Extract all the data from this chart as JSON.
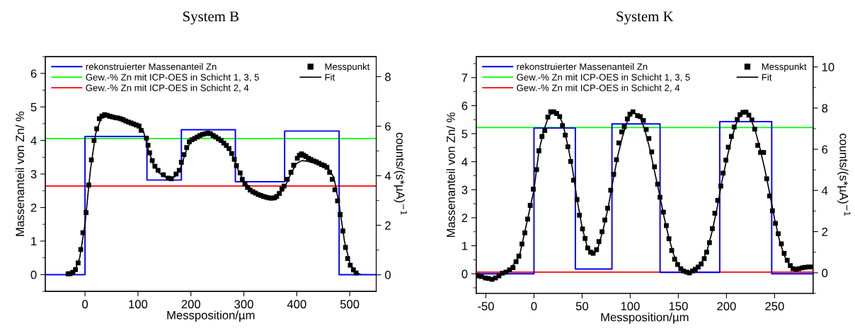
{
  "chart_data": [
    {
      "type": "scatter",
      "title": "System B",
      "xlabel": "Messposition/µm",
      "ylabel": "Massenanteil von Zn/ %",
      "y2label": "counts/(s*µA)$^{−1}$",
      "xlim": [
        -75,
        550
      ],
      "xticks": [
        0,
        100,
        200,
        300,
        400,
        500
      ],
      "ylim": [
        -0.5,
        6.5
      ],
      "yticks": [
        0,
        1,
        2,
        3,
        4,
        5,
        6
      ],
      "y2lim": [
        -0.67,
        8.81
      ],
      "y2ticks": [
        0,
        2,
        4,
        6,
        8
      ],
      "legend": "top",
      "grid": false,
      "series": [
        {
          "name": "rekonstruierter Massenanteil Zn",
          "type": "step",
          "color": "#0000ff",
          "x": [
            -75,
            0,
            117,
            182,
            284,
            377,
            480,
            550
          ],
          "values": [
            0,
            4.12,
            2.82,
            4.32,
            2.77,
            4.28,
            0,
            0
          ]
        },
        {
          "name": "Messpunkt",
          "marker": "square",
          "color": "#000000",
          "x": [
            -32,
            -28,
            -23,
            -18,
            -13,
            -8,
            -4,
            2,
            7,
            12,
            17,
            22,
            27,
            32,
            37,
            42,
            47,
            52,
            57,
            62,
            67,
            72,
            77,
            82,
            87,
            92,
            97,
            102,
            106,
            116,
            119,
            122,
            127,
            132,
            138,
            148,
            157,
            163,
            172,
            178,
            182,
            187,
            192,
            197,
            202,
            207,
            212,
            217,
            222,
            227,
            232,
            237,
            242,
            247,
            252,
            257,
            262,
            267,
            272,
            277,
            282,
            286,
            293,
            297,
            302,
            307,
            312,
            317,
            322,
            327,
            332,
            337,
            342,
            347,
            352,
            358,
            362,
            367,
            372,
            376,
            382,
            389,
            394,
            401,
            405,
            409,
            413,
            417,
            422,
            427,
            432,
            437,
            442,
            447,
            452,
            457,
            462,
            467,
            472,
            477,
            482,
            487,
            492,
            496,
            501,
            507,
            512
          ],
          "values": [
            0.02,
            0.03,
            0.07,
            0.15,
            0.35,
            0.75,
            1.25,
            1.85,
            2.67,
            3.42,
            4.0,
            4.35,
            4.65,
            4.73,
            4.77,
            4.75,
            4.72,
            4.7,
            4.68,
            4.67,
            4.65,
            4.62,
            4.58,
            4.55,
            4.52,
            4.49,
            4.46,
            4.43,
            4.3,
            4.07,
            3.86,
            3.63,
            3.4,
            3.23,
            3.11,
            2.98,
            2.88,
            2.86,
            3.0,
            3.11,
            3.35,
            3.58,
            3.79,
            3.96,
            4.02,
            4.06,
            4.1,
            4.15,
            4.18,
            4.2,
            4.22,
            4.2,
            4.15,
            4.1,
            4.05,
            4.0,
            3.92,
            3.85,
            3.76,
            3.61,
            3.44,
            3.25,
            3.03,
            2.84,
            2.7,
            2.6,
            2.52,
            2.47,
            2.43,
            2.39,
            2.36,
            2.33,
            2.31,
            2.29,
            2.28,
            2.29,
            2.33,
            2.42,
            2.55,
            2.64,
            2.84,
            3.05,
            3.26,
            3.47,
            3.56,
            3.6,
            3.56,
            3.52,
            3.47,
            3.43,
            3.39,
            3.36,
            3.32,
            3.28,
            3.25,
            3.2,
            3.05,
            2.84,
            2.53,
            2.2,
            1.79,
            1.3,
            0.81,
            0.48,
            0.28,
            0.14,
            0.05
          ]
        },
        {
          "name": "Fit",
          "type": "line",
          "line_style": "solid",
          "color": "#000000",
          "x": [
            -35,
            -20,
            -10,
            0,
            10,
            20,
            30,
            40,
            60,
            80,
            100,
            110,
            120,
            130,
            140,
            150,
            160,
            170,
            180,
            190,
            200,
            210,
            220,
            230,
            240,
            250,
            260,
            270,
            280,
            290,
            300,
            320,
            340,
            355,
            370,
            380,
            390,
            400,
            410,
            420,
            440,
            460,
            470,
            480,
            490,
            500,
            510,
            520
          ],
          "values": [
            0.01,
            0.1,
            0.5,
            1.5,
            3.1,
            4.2,
            4.65,
            4.72,
            4.66,
            4.56,
            4.44,
            4.3,
            3.7,
            3.25,
            3.03,
            2.92,
            2.86,
            2.92,
            3.15,
            3.65,
            3.98,
            4.08,
            4.15,
            4.18,
            4.15,
            4.04,
            3.92,
            3.78,
            3.5,
            3.1,
            2.78,
            2.45,
            2.33,
            2.3,
            2.45,
            2.7,
            3.05,
            3.32,
            3.4,
            3.38,
            3.3,
            3.15,
            2.9,
            2.1,
            1.0,
            0.35,
            0.08,
            0.01
          ]
        }
      ],
      "ref_lines": [
        {
          "axis": "y",
          "value": 4.06,
          "label": "Gew.-% Zn mit ICP-OES in Schicht 1, 3, 5",
          "color": "#00ff00"
        },
        {
          "axis": "y",
          "value": 2.64,
          "label": "Gew.-% Zn mit ICP-OES in Schicht 2, 4",
          "color": "#ff0000"
        }
      ]
    },
    {
      "type": "scatter",
      "title": "System K",
      "xlabel": "Messposition/µm",
      "ylabel": "Massenanteil von Zn/ %",
      "y2label": "counts/(s*µA)$^{−1}$",
      "xlim": [
        -60,
        290
      ],
      "xticks": [
        -50,
        0,
        50,
        100,
        150,
        200,
        250
      ],
      "ylim": [
        -0.7,
        7.75
      ],
      "yticks": [
        0,
        1,
        2,
        3,
        4,
        5,
        6,
        7
      ],
      "y2lim": [
        -1,
        10.5
      ],
      "y2ticks": [
        0,
        2,
        4,
        6,
        8,
        10
      ],
      "legend": "top",
      "grid": false,
      "series": [
        {
          "name": "rekonstruierter Massenanteil Zn",
          "type": "step",
          "color": "#0000ff",
          "x": [
            -60,
            0,
            43,
            81,
            131,
            193,
            247,
            290
          ],
          "values": [
            0,
            5.2,
            0.17,
            5.35,
            0.05,
            5.43,
            0,
            0
          ]
        },
        {
          "name": "Messpunkt",
          "marker": "square",
          "color": "#000000",
          "x": [
            -58.7,
            -54.6,
            -50.5,
            -47.3,
            -43.7,
            -40,
            -36.4,
            -32.8,
            -29.1,
            -25.4,
            -21.8,
            -18.6,
            -15.7,
            -12.5,
            -9.5,
            -6.6,
            -3.9,
            -0.7,
            2.7,
            5.1,
            8.3,
            11.2,
            14.4,
            17.4,
            20.5,
            23.5,
            26.7,
            29.6,
            32.5,
            35.2,
            38.1,
            41.1,
            44.7,
            47.2,
            50.4,
            53.1,
            55.8,
            58.9,
            61.4,
            65,
            67.5,
            70.7,
            73.6,
            76.5,
            79.7,
            82.8,
            85.7,
            88.2,
            91.1,
            93.8,
            97,
            99.7,
            102.8,
            107.6,
            110.5,
            113.7,
            116.6,
            119.4,
            122.3,
            125.2,
            128.4,
            130.9,
            134.5,
            137.5,
            140.2,
            143.1,
            146.1,
            149.2,
            152.5,
            155.4,
            158.6,
            161.5,
            164.7,
            167.6,
            170.6,
            173.7,
            176.9,
            179.4,
            182.3,
            185.3,
            187.9,
            190.9,
            194.1,
            196.5,
            199.4,
            201.9,
            205.1,
            208,
            211.2,
            214.1,
            217.1,
            220.3,
            223.2,
            226.4,
            229.3,
            232.5,
            235.4,
            238.6,
            241.8,
            244.8,
            247.7,
            250.9,
            253.8,
            257,
            259.9,
            263.1,
            266.3,
            269.2,
            272.4,
            275.3,
            278.5,
            281.4,
            285.1,
            288.8
          ],
          "values": [
            -0.07,
            -0.1,
            -0.15,
            -0.17,
            -0.2,
            -0.15,
            -0.07,
            0.02,
            0.06,
            0.14,
            0.22,
            0.43,
            0.63,
            1.06,
            1.46,
            1.95,
            2.44,
            3.02,
            3.72,
            4.39,
            4.9,
            5.11,
            5.59,
            5.78,
            5.78,
            5.72,
            5.61,
            5.29,
            4.95,
            4.53,
            4.01,
            3.34,
            2.65,
            2.09,
            1.6,
            1.26,
            0.92,
            0.77,
            0.73,
            0.86,
            1.15,
            1.5,
            1.92,
            2.34,
            2.98,
            3.55,
            4.07,
            4.67,
            5.06,
            5.25,
            5.53,
            5.7,
            5.78,
            5.64,
            5.61,
            5.47,
            5.15,
            4.83,
            4.35,
            3.82,
            3.2,
            2.73,
            2.2,
            1.72,
            1.25,
            0.83,
            0.52,
            0.33,
            0.18,
            0.1,
            0.06,
            0.03,
            0.1,
            0.16,
            0.24,
            0.35,
            0.54,
            0.77,
            1.11,
            1.61,
            2.16,
            2.62,
            3.13,
            3.59,
            4.06,
            4.52,
            4.9,
            5.24,
            5.51,
            5.68,
            5.76,
            5.77,
            5.66,
            5.49,
            5.16,
            4.58,
            4.33,
            4.33,
            3.39,
            2.78,
            2.25,
            1.8,
            1.43,
            1.07,
            0.73,
            0.48,
            0.29,
            0.18,
            0.16,
            0.18,
            0.21,
            0.23,
            0.24,
            0.24
          ]
        },
        {
          "name": "Fit",
          "type": "line",
          "line_style": "solid",
          "color": "#000000",
          "x": [
            -58,
            -50,
            -43,
            -35,
            -25,
            -15,
            -5,
            0,
            5,
            10,
            15,
            20,
            25,
            30,
            35,
            40,
            45,
            50,
            55,
            60,
            63,
            67,
            72,
            77,
            82,
            87,
            92,
            97,
            102,
            106,
            110,
            115,
            120,
            125,
            130,
            135,
            140,
            145,
            150,
            155,
            160,
            165,
            170,
            175,
            180,
            185,
            190,
            195,
            200,
            205,
            210,
            215,
            220,
            225,
            230,
            235,
            240,
            245,
            250,
            255,
            260,
            265,
            270,
            275,
            280,
            290
          ],
          "values": [
            -0.07,
            -0.15,
            -0.2,
            -0.05,
            0.14,
            0.65,
            2.2,
            3.0,
            4.35,
            5.1,
            5.6,
            5.78,
            5.72,
            5.35,
            4.6,
            3.75,
            2.6,
            1.65,
            1.0,
            0.76,
            0.73,
            0.98,
            1.6,
            2.35,
            3.3,
            4.2,
            4.9,
            5.45,
            5.75,
            5.72,
            5.6,
            5.15,
            4.5,
            3.7,
            2.9,
            2.05,
            1.3,
            0.7,
            0.3,
            0.1,
            0.04,
            0.08,
            0.22,
            0.45,
            0.85,
            1.5,
            2.3,
            3.25,
            4.05,
            4.8,
            5.35,
            5.68,
            5.77,
            5.55,
            5.1,
            4.45,
            3.7,
            2.85,
            1.95,
            1.2,
            0.65,
            0.35,
            0.2,
            0.18,
            0.2,
            0.22
          ]
        }
      ],
      "ref_lines": [
        {
          "axis": "y",
          "value": 5.22,
          "label": "Gew.-% Zn mit ICP-OES in Schicht 1, 3, 5",
          "color": "#00ff00"
        },
        {
          "axis": "y",
          "value": 0.06,
          "label": "Gew.-% Zn mit ICP-OES in Schicht 2, 4",
          "color": "#ff0000"
        }
      ]
    }
  ]
}
